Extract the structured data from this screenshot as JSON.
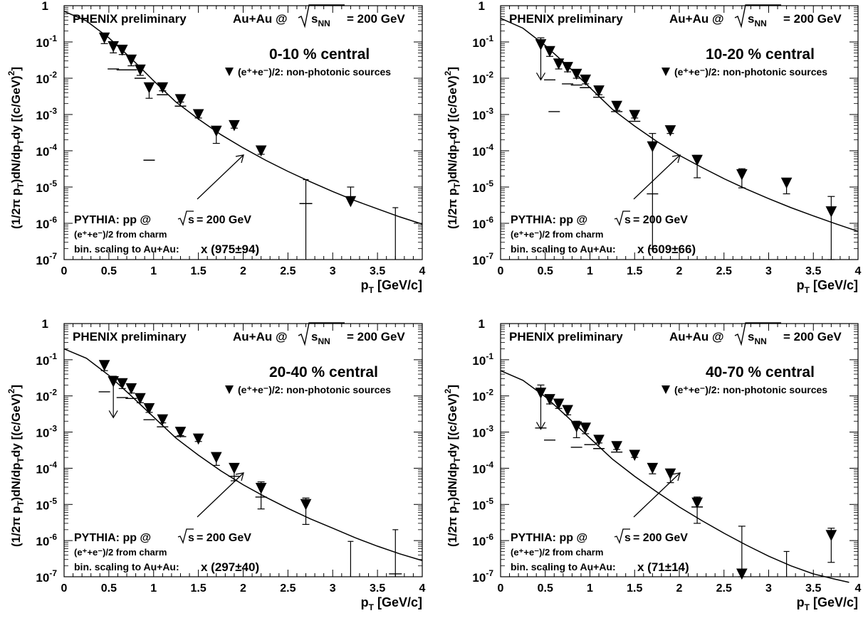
{
  "figure": {
    "experiment_label": "PHENIX preliminary",
    "system_label_prefix": "Au+Au @",
    "sqrt_symbol": "√",
    "sqrt_content": "s",
    "sqrt_subscript": "NN",
    "system_label_suffix": "= 200 GeV",
    "legend_label": "(e⁺+e⁻)/2: non-photonic sources",
    "pythia_line1": "PYTHIA: pp @",
    "pythia_line1_suffix": "= 200 GeV",
    "pythia_line2": "(e⁺+e⁻)/2 from charm",
    "pythia_line3_prefix": "bin. scaling to Au+Au:",
    "xlabel": "p",
    "xlabel_sub": "T",
    "xlabel_unit": "[GeV/c]",
    "ylabel": "(1/2π p_T)dN/dp_T dy [(c/GeV)^2]",
    "x_ticks": [
      "0",
      "0.5",
      "1",
      "1.5",
      "2",
      "2.5",
      "3",
      "3.5",
      "4"
    ],
    "y_ticks": [
      {
        "exp": 0,
        "label": "1"
      },
      {
        "exp": -1,
        "label": "10⁻¹"
      },
      {
        "exp": -2,
        "label": "10⁻²"
      },
      {
        "exp": -3,
        "label": "10⁻³"
      },
      {
        "exp": -4,
        "label": "10⁻⁴"
      },
      {
        "exp": -5,
        "label": "10⁻⁵"
      },
      {
        "exp": -6,
        "label": "10⁻⁶"
      },
      {
        "exp": -7,
        "label": "10⁻⁷"
      }
    ]
  },
  "chart_data": [
    {
      "type": "scatter",
      "centrality": "0-10 % central",
      "scaling": "x (975±94)",
      "xlim": [
        0,
        4
      ],
      "ylim": [
        1e-07,
        1
      ],
      "yscale": "log",
      "data": [
        {
          "x": 0.45,
          "y": 0.13,
          "lo": 0.09,
          "hi": 0.17
        },
        {
          "x": 0.55,
          "y": 0.075,
          "lo": 0.05,
          "hi": 0.09
        },
        {
          "x": 0.65,
          "y": 0.06,
          "lo": 0.045,
          "hi": 0.075
        },
        {
          "x": 0.75,
          "y": 0.032,
          "lo": 0.022,
          "hi": 0.04
        },
        {
          "x": 0.85,
          "y": 0.017,
          "lo": 0.012,
          "hi": 0.02
        },
        {
          "x": 0.95,
          "y": 0.0055,
          "lo": 0.0028,
          "hi": 0.0065
        },
        {
          "x": 1.1,
          "y": 0.0055,
          "lo": 0.0045,
          "hi": 0.006
        },
        {
          "x": 1.3,
          "y": 0.0026,
          "lo": 0.0022,
          "hi": 0.003
        },
        {
          "x": 1.5,
          "y": 0.001,
          "lo": 0.0008,
          "hi": 0.0012
        },
        {
          "x": 1.7,
          "y": 0.00035,
          "lo": 0.00016,
          "hi": 0.00045
        },
        {
          "x": 1.9,
          "y": 0.0005,
          "lo": 0.00042,
          "hi": 0.0006
        },
        {
          "x": 2.2,
          "y": 0.0001,
          "lo": 8e-05,
          "hi": 0.00012
        },
        {
          "x": 3.2,
          "y": 4e-06,
          "lo": null,
          "hi": 1e-05
        }
      ],
      "upper_limits": [
        {
          "x": 2.7,
          "y": 3.5e-06,
          "hi": 1.6e-05
        },
        {
          "x": 3.7,
          "y": null,
          "hi": 2.7e-06
        }
      ],
      "systematic_marks": [
        {
          "x": 0.55,
          "y": 0.018
        },
        {
          "x": 0.65,
          "y": 0.017
        },
        {
          "x": 0.75,
          "y": 0.017
        },
        {
          "x": 0.85,
          "y": 0.01
        },
        {
          "x": 0.95,
          "y": 5.5e-05
        },
        {
          "x": 1.1,
          "y": 0.0035
        },
        {
          "x": 1.3,
          "y": 0.0017
        }
      ],
      "arrows": [],
      "pythia_curve": [
        [
          0,
          0.7
        ],
        [
          0.25,
          0.38
        ],
        [
          0.5,
          0.13
        ],
        [
          0.75,
          0.035
        ],
        [
          1.0,
          0.0085
        ],
        [
          1.25,
          0.0022
        ],
        [
          1.5,
          0.00075
        ],
        [
          1.75,
          0.00028
        ],
        [
          2.0,
          0.00012
        ],
        [
          2.25,
          5.5e-05
        ],
        [
          2.5,
          2.7e-05
        ],
        [
          2.75,
          1.4e-05
        ],
        [
          3.0,
          7.5e-06
        ],
        [
          3.25,
          4.2e-06
        ],
        [
          3.5,
          2.5e-06
        ],
        [
          3.75,
          1.5e-06
        ],
        [
          4.0,
          9.5e-07
        ]
      ]
    },
    {
      "type": "scatter",
      "centrality": "10-20 % central",
      "scaling": "x (609±66)",
      "xlim": [
        0,
        4
      ],
      "ylim": [
        1e-07,
        1
      ],
      "yscale": "log",
      "data": [
        {
          "x": 0.45,
          "y": 0.085,
          "lo": null,
          "hi": 0.13
        },
        {
          "x": 0.55,
          "y": 0.055,
          "lo": 0.04,
          "hi": 0.07
        },
        {
          "x": 0.65,
          "y": 0.025,
          "lo": 0.018,
          "hi": 0.03
        },
        {
          "x": 0.75,
          "y": 0.02,
          "lo": 0.015,
          "hi": 0.024
        },
        {
          "x": 0.85,
          "y": 0.013,
          "lo": 0.01,
          "hi": 0.016
        },
        {
          "x": 0.95,
          "y": 0.009,
          "lo": 0.007,
          "hi": 0.011
        },
        {
          "x": 1.1,
          "y": 0.0045,
          "lo": 0.0035,
          "hi": 0.0055
        },
        {
          "x": 1.3,
          "y": 0.0017,
          "lo": 0.0013,
          "hi": 0.002
        },
        {
          "x": 1.5,
          "y": 0.00095,
          "lo": 0.0008,
          "hi": 0.0011
        },
        {
          "x": 1.7,
          "y": 0.00013,
          "lo": 2e-07,
          "hi": 0.0003
        },
        {
          "x": 1.9,
          "y": 0.00036,
          "lo": 0.0003,
          "hi": 0.00042
        },
        {
          "x": 2.2,
          "y": 5.5e-05,
          "lo": 1.8e-05,
          "hi": 7.5e-05
        },
        {
          "x": 2.7,
          "y": 2.2e-05,
          "lo": 9.5e-06,
          "hi": 3.2e-05
        },
        {
          "x": 3.2,
          "y": 1.3e-05,
          "lo": 6.5e-06,
          "hi": 1.7e-05
        },
        {
          "x": 3.7,
          "y": 2.1e-06,
          "lo": 1e-07,
          "hi": 5.5e-06
        }
      ],
      "upper_limits": [],
      "systematic_marks": [
        {
          "x": 0.55,
          "y": 0.009
        },
        {
          "x": 0.6,
          "y": 0.0012
        },
        {
          "x": 0.75,
          "y": 0.007
        },
        {
          "x": 0.85,
          "y": 0.0065
        },
        {
          "x": 0.95,
          "y": 0.0055
        },
        {
          "x": 1.1,
          "y": 0.003
        },
        {
          "x": 1.3,
          "y": 0.0012
        },
        {
          "x": 1.5,
          "y": 0.00065
        },
        {
          "x": 1.7,
          "y": 6.5e-06
        }
      ],
      "arrows": [
        {
          "x": 0.45,
          "from": 0.13,
          "to": 0.009
        }
      ],
      "pythia_curve": [
        [
          0,
          0.45
        ],
        [
          0.25,
          0.24
        ],
        [
          0.5,
          0.08
        ],
        [
          0.75,
          0.022
        ],
        [
          1.0,
          0.0055
        ],
        [
          1.25,
          0.0014
        ],
        [
          1.5,
          0.00048
        ],
        [
          1.75,
          0.00018
        ],
        [
          2.0,
          7.5e-05
        ],
        [
          2.25,
          3.5e-05
        ],
        [
          2.5,
          1.7e-05
        ],
        [
          2.75,
          8.8e-06
        ],
        [
          3.0,
          4.8e-06
        ],
        [
          3.25,
          2.7e-06
        ],
        [
          3.5,
          1.6e-06
        ],
        [
          3.75,
          9.7e-07
        ],
        [
          4.0,
          6e-07
        ]
      ]
    },
    {
      "type": "scatter",
      "centrality": "20-40 % central",
      "scaling": "x (297±40)",
      "xlim": [
        0,
        4
      ],
      "ylim": [
        1e-07,
        1
      ],
      "yscale": "log",
      "data": [
        {
          "x": 0.45,
          "y": 0.07,
          "lo": 0.05,
          "hi": 0.09
        },
        {
          "x": 0.55,
          "y": 0.025,
          "lo": null,
          "hi": 0.035
        },
        {
          "x": 0.65,
          "y": 0.022,
          "lo": 0.016,
          "hi": 0.027
        },
        {
          "x": 0.75,
          "y": 0.016,
          "lo": 0.012,
          "hi": 0.02
        },
        {
          "x": 0.85,
          "y": 0.0085,
          "lo": 0.0065,
          "hi": 0.01
        },
        {
          "x": 0.95,
          "y": 0.0045,
          "lo": 0.0035,
          "hi": 0.0055
        },
        {
          "x": 1.1,
          "y": 0.0022,
          "lo": 0.0018,
          "hi": 0.0026
        },
        {
          "x": 1.3,
          "y": 0.001,
          "lo": 0.0008,
          "hi": 0.0012
        },
        {
          "x": 1.5,
          "y": 0.00065,
          "lo": 0.00055,
          "hi": 0.00075
        },
        {
          "x": 1.7,
          "y": 0.0002,
          "lo": 0.00012,
          "hi": 0.00026
        },
        {
          "x": 1.9,
          "y": 0.0001,
          "lo": 4.5e-05,
          "hi": 0.00013
        },
        {
          "x": 2.2,
          "y": 2.8e-05,
          "lo": 7.5e-06,
          "hi": 4.2e-05
        },
        {
          "x": 2.7,
          "y": 1e-05,
          "lo": 2.8e-06,
          "hi": 1.5e-05
        }
      ],
      "upper_limits": [
        {
          "x": 3.2,
          "y": null,
          "hi": 9.5e-07
        },
        {
          "x": 3.7,
          "y": 1.2e-07,
          "hi": 2e-06
        }
      ],
      "systematic_marks": [
        {
          "x": 0.45,
          "y": 0.013
        },
        {
          "x": 0.65,
          "y": 0.009
        },
        {
          "x": 0.75,
          "y": 0.0085
        },
        {
          "x": 0.95,
          "y": 0.0022
        },
        {
          "x": 1.1,
          "y": 0.0014
        },
        {
          "x": 1.3,
          "y": 0.00075
        },
        {
          "x": 1.9,
          "y": 6e-05
        },
        {
          "x": 2.2,
          "y": 1.6e-05
        }
      ],
      "arrows": [
        {
          "x": 0.55,
          "from": 0.035,
          "to": 0.0025
        }
      ],
      "pythia_curve": [
        [
          0,
          0.2
        ],
        [
          0.25,
          0.11
        ],
        [
          0.5,
          0.037
        ],
        [
          0.75,
          0.01
        ],
        [
          1.0,
          0.0026
        ],
        [
          1.25,
          0.00068
        ],
        [
          1.5,
          0.00023
        ],
        [
          1.75,
          8.5e-05
        ],
        [
          2.0,
          3.5e-05
        ],
        [
          2.25,
          1.6e-05
        ],
        [
          2.5,
          7.8e-06
        ],
        [
          2.75,
          4e-06
        ],
        [
          3.0,
          2.2e-06
        ],
        [
          3.25,
          1.2e-06
        ],
        [
          3.5,
          7e-07
        ],
        [
          3.75,
          4.3e-07
        ],
        [
          4.0,
          2.8e-07
        ]
      ]
    },
    {
      "type": "scatter",
      "centrality": "40-70 % central",
      "scaling": "x (71±14)",
      "xlim": [
        0,
        4
      ],
      "ylim": [
        1e-07,
        1
      ],
      "yscale": "log",
      "data": [
        {
          "x": 0.45,
          "y": 0.012,
          "lo": null,
          "hi": 0.02
        },
        {
          "x": 0.55,
          "y": 0.008,
          "lo": 0.006,
          "hi": 0.01
        },
        {
          "x": 0.65,
          "y": 0.006,
          "lo": 0.0045,
          "hi": 0.0075
        },
        {
          "x": 0.75,
          "y": 0.004,
          "lo": 0.003,
          "hi": 0.005
        },
        {
          "x": 0.85,
          "y": 0.0014,
          "lo": 0.0007,
          "hi": 0.002
        },
        {
          "x": 0.95,
          "y": 0.0013,
          "lo": 0.0009,
          "hi": 0.0016
        },
        {
          "x": 1.1,
          "y": 0.0006,
          "lo": 0.0005,
          "hi": 0.0007
        },
        {
          "x": 1.3,
          "y": 0.0004,
          "lo": 0.00033,
          "hi": 0.00047
        },
        {
          "x": 1.5,
          "y": 0.00023,
          "lo": 0.0002,
          "hi": 0.00027
        },
        {
          "x": 1.7,
          "y": 0.0001,
          "lo": 7e-05,
          "hi": 0.00012
        },
        {
          "x": 1.9,
          "y": 7e-05,
          "lo": 4e-05,
          "hi": 8.5e-05
        },
        {
          "x": 2.2,
          "y": 1.1e-05,
          "lo": 3e-06,
          "hi": 1.6e-05
        },
        {
          "x": 2.7,
          "y": 1.2e-07,
          "lo": 1e-07,
          "hi": 2.5e-06
        },
        {
          "x": 3.7,
          "y": 1.4e-06,
          "lo": 2.5e-07,
          "hi": 2.2e-06
        }
      ],
      "upper_limits": [
        {
          "x": 3.2,
          "y": null,
          "hi": 5e-07
        }
      ],
      "systematic_marks": [
        {
          "x": 0.45,
          "y": 0.0013
        },
        {
          "x": 0.55,
          "y": 0.0006
        },
        {
          "x": 0.85,
          "y": 0.00038
        },
        {
          "x": 1.0,
          "y": 0.00045
        },
        {
          "x": 1.1,
          "y": 0.00035
        },
        {
          "x": 1.3,
          "y": 0.00028
        },
        {
          "x": 2.2,
          "y": 8.5e-06
        }
      ],
      "arrows": [
        {
          "x": 0.45,
          "from": 0.02,
          "to": 0.0012
        }
      ],
      "pythia_curve": [
        [
          0,
          0.05
        ],
        [
          0.25,
          0.027
        ],
        [
          0.5,
          0.0095
        ],
        [
          0.75,
          0.0026
        ],
        [
          1.0,
          0.00068
        ],
        [
          1.25,
          0.00018
        ],
        [
          1.5,
          6e-05
        ],
        [
          1.75,
          2.2e-05
        ],
        [
          2.0,
          8.5e-06
        ],
        [
          2.25,
          3.6e-06
        ],
        [
          2.5,
          1.6e-06
        ],
        [
          2.75,
          7.5e-07
        ],
        [
          3.0,
          3.7e-07
        ],
        [
          3.25,
          2e-07
        ],
        [
          3.5,
          1.2e-07
        ],
        [
          3.75,
          8.5e-08
        ],
        [
          3.9,
          7e-08
        ]
      ]
    }
  ]
}
